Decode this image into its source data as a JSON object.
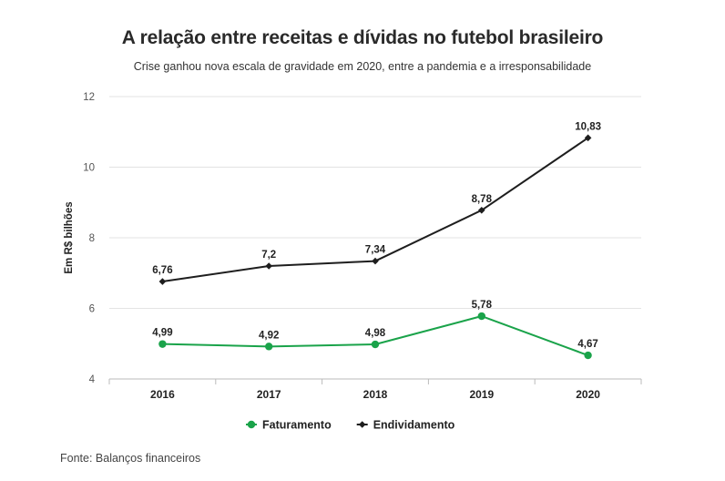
{
  "header": {
    "title": "A relação entre receitas e dívidas no futebol brasileiro",
    "subtitle": "Crise ganhou nova escala de gravidade em 2020, entre a pandemia e a irresponsabilidade"
  },
  "footer": {
    "source": "Fonte: Balanços financeiros"
  },
  "chart_data": {
    "type": "line",
    "title": "A relação entre receitas e dívidas no futebol brasileiro",
    "subtitle": "Crise ganhou nova escala de gravidade em 2020, entre a pandemia e a irresponsabilidade",
    "xlabel": "",
    "ylabel": "Em R$ bilhões",
    "categories": [
      "2016",
      "2017",
      "2018",
      "2019",
      "2020"
    ],
    "ylim": [
      4,
      12
    ],
    "yticks": [
      4,
      6,
      8,
      10,
      12
    ],
    "grid": true,
    "legend_position": "bottom",
    "series": [
      {
        "name": "Faturamento",
        "values": [
          4.99,
          4.92,
          4.98,
          5.78,
          4.67
        ],
        "labels": [
          "4,99",
          "4,92",
          "4,98",
          "5,78",
          "4,67"
        ],
        "color": "#1aa34a",
        "marker": "circle"
      },
      {
        "name": "Endividamento",
        "values": [
          6.76,
          7.2,
          7.34,
          8.78,
          10.83
        ],
        "labels": [
          "6,76",
          "7,2",
          "7,34",
          "8,78",
          "10,83"
        ],
        "color": "#1e1e1e",
        "marker": "diamond"
      }
    ]
  }
}
